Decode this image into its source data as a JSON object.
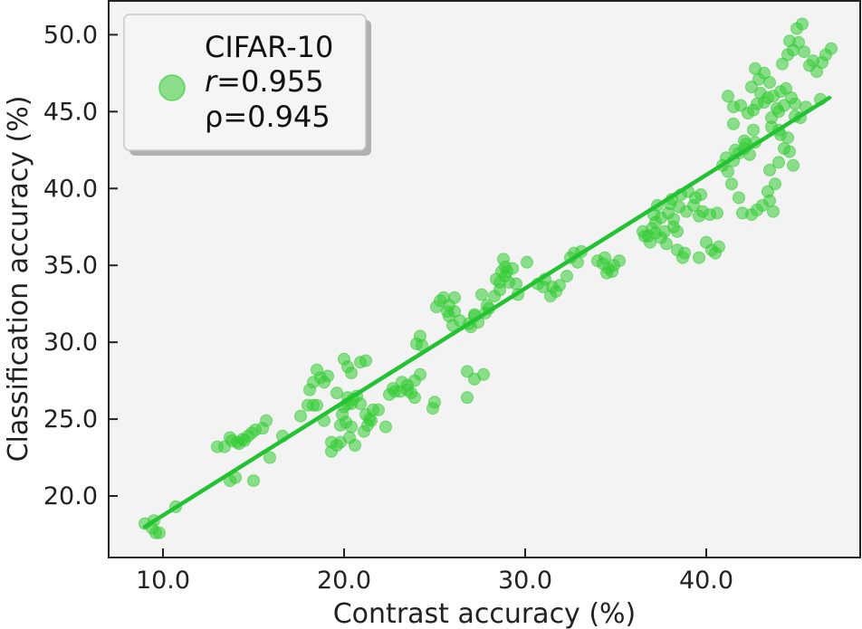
{
  "chart_data": {
    "type": "scatter",
    "title": "",
    "xlabel": "Contrast accuracy (%)",
    "ylabel": "Classification accuracy (%)",
    "xlim": [
      7.0,
      48.5
    ],
    "ylim": [
      16.0,
      52.2
    ],
    "xticks": [
      10,
      20,
      30,
      40
    ],
    "xtick_labels": [
      "10.0",
      "20.0",
      "30.0",
      "40.0"
    ],
    "yticks": [
      20,
      25,
      30,
      35,
      40,
      45,
      50
    ],
    "ytick_labels": [
      "20.0",
      "25.0",
      "30.0",
      "35.0",
      "40.0",
      "45.0",
      "50.0"
    ],
    "grid": false,
    "legend_position": "top-left",
    "legend": {
      "label": "CIFAR-10",
      "r_symbol": "r",
      "r_value": "=0.955",
      "rho_text": "ρ=0.945"
    },
    "colors": {
      "points": "#33cc33",
      "fit_line": "#22c233",
      "background": "#f3f3f3"
    },
    "regression": {
      "x": [
        9.0,
        46.8
      ],
      "y": [
        18.0,
        45.9
      ]
    },
    "series": [
      {
        "name": "CIFAR-10",
        "points": [
          [
            9.0,
            18.2
          ],
          [
            9.5,
            18.4
          ],
          [
            9.8,
            17.6
          ],
          [
            9.6,
            17.6
          ],
          [
            10.7,
            19.3
          ],
          [
            9.4,
            17.9
          ],
          [
            13.0,
            23.2
          ],
          [
            13.4,
            23.2
          ],
          [
            13.8,
            23.6
          ],
          [
            14.1,
            23.5
          ],
          [
            14.4,
            23.7
          ],
          [
            14.7,
            23.9
          ],
          [
            14.9,
            24.1
          ],
          [
            15.1,
            24.3
          ],
          [
            15.5,
            24.4
          ],
          [
            15.7,
            24.9
          ],
          [
            14.2,
            23.4
          ],
          [
            13.7,
            23.8
          ],
          [
            14.5,
            23.6
          ],
          [
            13.7,
            21.0
          ],
          [
            14.0,
            21.2
          ],
          [
            15.0,
            21.0
          ],
          [
            15.9,
            22.5
          ],
          [
            16.6,
            23.9
          ],
          [
            17.6,
            25.2
          ],
          [
            18.0,
            25.9
          ],
          [
            18.3,
            25.9
          ],
          [
            18.5,
            25.9
          ],
          [
            18.9,
            24.9
          ],
          [
            18.1,
            26.9
          ],
          [
            18.3,
            27.4
          ],
          [
            18.7,
            27.7
          ],
          [
            18.5,
            28.2
          ],
          [
            18.9,
            27.4
          ],
          [
            19.1,
            27.8
          ],
          [
            19.3,
            23.5
          ],
          [
            19.3,
            22.9
          ],
          [
            19.6,
            23.3
          ],
          [
            19.8,
            24.6
          ],
          [
            19.9,
            25.3
          ],
          [
            20.0,
            25.8
          ],
          [
            20.2,
            26.0
          ],
          [
            20.2,
            26.4
          ],
          [
            20.4,
            26.0
          ],
          [
            20.5,
            26.3
          ],
          [
            20.7,
            26.5
          ],
          [
            20.9,
            26.0
          ],
          [
            21.2,
            25.3
          ],
          [
            21.4,
            25.0
          ],
          [
            21.6,
            25.6
          ],
          [
            21.9,
            25.6
          ],
          [
            20.0,
            28.9
          ],
          [
            20.2,
            28.4
          ],
          [
            20.4,
            28.0
          ],
          [
            20.9,
            28.7
          ],
          [
            21.2,
            28.8
          ],
          [
            20.6,
            23.3
          ],
          [
            20.3,
            23.8
          ],
          [
            21.1,
            24.2
          ],
          [
            21.3,
            24.6
          ],
          [
            21.5,
            24.9
          ],
          [
            19.6,
            26.7
          ],
          [
            20.1,
            24.8
          ],
          [
            19.8,
            23.5
          ],
          [
            20.4,
            24.5
          ],
          [
            22.3,
            24.5
          ],
          [
            22.5,
            26.6
          ],
          [
            22.8,
            26.8
          ],
          [
            23.1,
            26.8
          ],
          [
            23.5,
            26.9
          ],
          [
            23.5,
            27.2
          ],
          [
            23.9,
            27.5
          ],
          [
            24.2,
            27.9
          ],
          [
            23.2,
            27.4
          ],
          [
            24.0,
            29.9
          ],
          [
            24.2,
            30.4
          ],
          [
            24.3,
            29.8
          ],
          [
            23.7,
            26.7
          ],
          [
            22.7,
            27.0
          ],
          [
            23.9,
            26.4
          ],
          [
            24.9,
            25.7
          ],
          [
            25.0,
            26.1
          ],
          [
            25.1,
            32.3
          ],
          [
            25.3,
            32.7
          ],
          [
            25.5,
            32.9
          ],
          [
            25.8,
            32.4
          ],
          [
            26.1,
            32.9
          ],
          [
            26.1,
            32.0
          ],
          [
            25.8,
            31.7
          ],
          [
            25.7,
            32.0
          ],
          [
            26.0,
            31.1
          ],
          [
            26.4,
            31.4
          ],
          [
            26.9,
            31.2
          ],
          [
            27.2,
            31.7
          ],
          [
            27.4,
            31.3
          ],
          [
            27.0,
            31.0
          ],
          [
            26.8,
            28.1
          ],
          [
            27.2,
            27.6
          ],
          [
            27.7,
            27.9
          ],
          [
            26.8,
            26.4
          ],
          [
            27.8,
            31.9
          ],
          [
            28.0,
            32.2
          ],
          [
            28.3,
            33.0
          ],
          [
            28.6,
            33.9
          ],
          [
            28.9,
            34.3
          ],
          [
            29.0,
            34.6
          ],
          [
            29.3,
            34.8
          ],
          [
            28.9,
            34.9
          ],
          [
            28.4,
            34.1
          ],
          [
            28.7,
            34.6
          ],
          [
            28.8,
            35.4
          ],
          [
            29.1,
            33.9
          ],
          [
            28.6,
            33.4
          ],
          [
            29.6,
            33.1
          ],
          [
            29.5,
            33.8
          ],
          [
            30.1,
            35.2
          ],
          [
            27.6,
            33.1
          ],
          [
            27.9,
            32.4
          ],
          [
            27.2,
            31.8
          ],
          [
            30.7,
            33.8
          ],
          [
            31.0,
            33.6
          ],
          [
            31.1,
            34.1
          ],
          [
            31.4,
            33.0
          ],
          [
            31.5,
            33.6
          ],
          [
            31.9,
            33.7
          ],
          [
            32.3,
            34.3
          ],
          [
            32.5,
            35.5
          ],
          [
            32.7,
            35.8
          ],
          [
            33.1,
            35.9
          ],
          [
            32.9,
            35.2
          ],
          [
            31.7,
            33.3
          ],
          [
            34.0,
            35.3
          ],
          [
            34.3,
            35.1
          ],
          [
            34.6,
            34.8
          ],
          [
            34.9,
            35.0
          ],
          [
            35.2,
            35.3
          ],
          [
            34.8,
            34.6
          ],
          [
            34.4,
            35.5
          ],
          [
            34.5,
            34.5
          ],
          [
            36.5,
            37.2
          ],
          [
            36.8,
            36.9
          ],
          [
            37.0,
            37.4
          ],
          [
            37.2,
            37.8
          ],
          [
            37.5,
            38.1
          ],
          [
            37.9,
            38.4
          ],
          [
            38.2,
            38.0
          ],
          [
            37.5,
            36.8
          ],
          [
            37.8,
            36.4
          ],
          [
            38.2,
            37.5
          ],
          [
            38.5,
            38.8
          ],
          [
            38.9,
            38.5
          ],
          [
            39.3,
            38.9
          ],
          [
            39.6,
            38.2
          ],
          [
            38.6,
            39.6
          ],
          [
            38.0,
            39.0
          ],
          [
            38.4,
            36.0
          ],
          [
            38.8,
            35.8
          ],
          [
            38.7,
            35.5
          ],
          [
            39.6,
            35.5
          ],
          [
            40.0,
            36.5
          ],
          [
            40.3,
            36.0
          ],
          [
            40.7,
            36.2
          ],
          [
            40.5,
            35.8
          ],
          [
            36.6,
            36.9
          ],
          [
            37.2,
            37.1
          ],
          [
            38.4,
            37.2
          ],
          [
            39.0,
            39.8
          ],
          [
            39.7,
            39.6
          ],
          [
            39.8,
            38.5
          ],
          [
            40.2,
            38.3
          ],
          [
            40.6,
            38.4
          ],
          [
            39.4,
            39.4
          ],
          [
            38.1,
            39.3
          ],
          [
            37.7,
            37.2
          ],
          [
            36.9,
            36.5
          ],
          [
            37.3,
            38.9
          ],
          [
            37.1,
            38.3
          ],
          [
            40.9,
            41.5
          ],
          [
            41.1,
            42.0
          ],
          [
            41.2,
            41.1
          ],
          [
            41.5,
            41.8
          ],
          [
            41.8,
            42.3
          ],
          [
            42.1,
            42.6
          ],
          [
            42.4,
            42.2
          ],
          [
            42.2,
            42.9
          ],
          [
            42.7,
            43.0
          ],
          [
            41.6,
            42.5
          ],
          [
            41.4,
            40.3
          ],
          [
            41.8,
            39.4
          ],
          [
            42.0,
            38.4
          ],
          [
            42.5,
            38.3
          ],
          [
            42.8,
            38.6
          ],
          [
            43.1,
            38.9
          ],
          [
            43.5,
            39.2
          ],
          [
            43.7,
            38.5
          ],
          [
            43.4,
            39.8
          ],
          [
            43.8,
            40.3
          ],
          [
            43.5,
            41.2
          ],
          [
            44.0,
            41.7
          ],
          [
            44.3,
            42.6
          ],
          [
            44.6,
            42.4
          ],
          [
            44.8,
            41.5
          ],
          [
            44.5,
            43.3
          ],
          [
            44.0,
            43.8
          ],
          [
            44.9,
            44.7
          ],
          [
            45.2,
            44.6
          ],
          [
            41.2,
            46.0
          ],
          [
            41.5,
            45.3
          ],
          [
            41.9,
            45.4
          ],
          [
            42.3,
            44.9
          ],
          [
            42.6,
            45.1
          ],
          [
            42.8,
            45.5
          ],
          [
            43.2,
            45.6
          ],
          [
            43.4,
            45.9
          ],
          [
            43.7,
            46.0
          ],
          [
            44.1,
            46.3
          ],
          [
            44.3,
            45.4
          ],
          [
            44.0,
            45.0
          ],
          [
            43.6,
            44.6
          ],
          [
            43.9,
            45.2
          ],
          [
            44.4,
            46.5
          ],
          [
            44.7,
            45.9
          ],
          [
            43.5,
            46.9
          ],
          [
            43.2,
            47.5
          ],
          [
            42.9,
            47.1
          ],
          [
            42.5,
            46.6
          ],
          [
            42.7,
            47.8
          ],
          [
            43.0,
            46.2
          ],
          [
            44.2,
            48.1
          ],
          [
            44.5,
            48.7
          ],
          [
            44.8,
            49.0
          ],
          [
            45.1,
            49.5
          ],
          [
            45.4,
            48.9
          ],
          [
            45.7,
            48.0
          ],
          [
            46.1,
            47.6
          ],
          [
            46.4,
            48.2
          ],
          [
            46.6,
            48.7
          ],
          [
            46.9,
            49.1
          ],
          [
            45.0,
            50.4
          ],
          [
            45.3,
            50.7
          ],
          [
            44.6,
            49.6
          ],
          [
            45.9,
            48.3
          ],
          [
            43.6,
            44.0
          ],
          [
            44.9,
            45.5
          ],
          [
            45.5,
            45.3
          ],
          [
            46.3,
            45.8
          ],
          [
            42.1,
            43.1
          ],
          [
            41.5,
            44.2
          ],
          [
            42.6,
            43.8
          ],
          [
            44.1,
            43.5
          ]
        ]
      }
    ]
  }
}
